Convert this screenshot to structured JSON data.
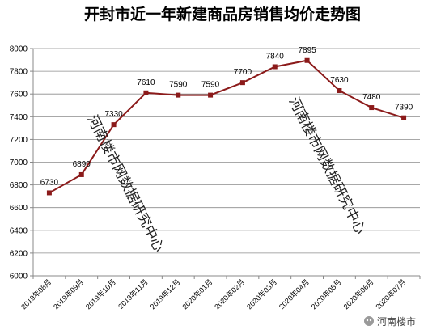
{
  "chart_data": {
    "type": "line",
    "title": "开封市近一年新建商品房销售均价走势图",
    "categories": [
      "2019年08月",
      "2019年09月",
      "2019年10月",
      "2019年11月",
      "2019年12月",
      "2020年01月",
      "2020年02月",
      "2020年03月",
      "2020年04月",
      "2020年05月",
      "2020年06月",
      "2020年07月"
    ],
    "series": [
      {
        "values": [
          6730,
          6890,
          7330,
          7610,
          7590,
          7590,
          7700,
          7840,
          7895,
          7630,
          7480,
          7390
        ]
      }
    ],
    "ylim": [
      6000,
      8000
    ],
    "ytick_step": 200,
    "grid": true,
    "legend": "none",
    "line_color": "#8b1a1a",
    "grid_color": "#8c8c8c"
  },
  "watermarks": [
    "河南楼市网数据研究中心",
    "河南楼市网数据研究中心"
  ],
  "brand": {
    "label": "河南楼市"
  }
}
